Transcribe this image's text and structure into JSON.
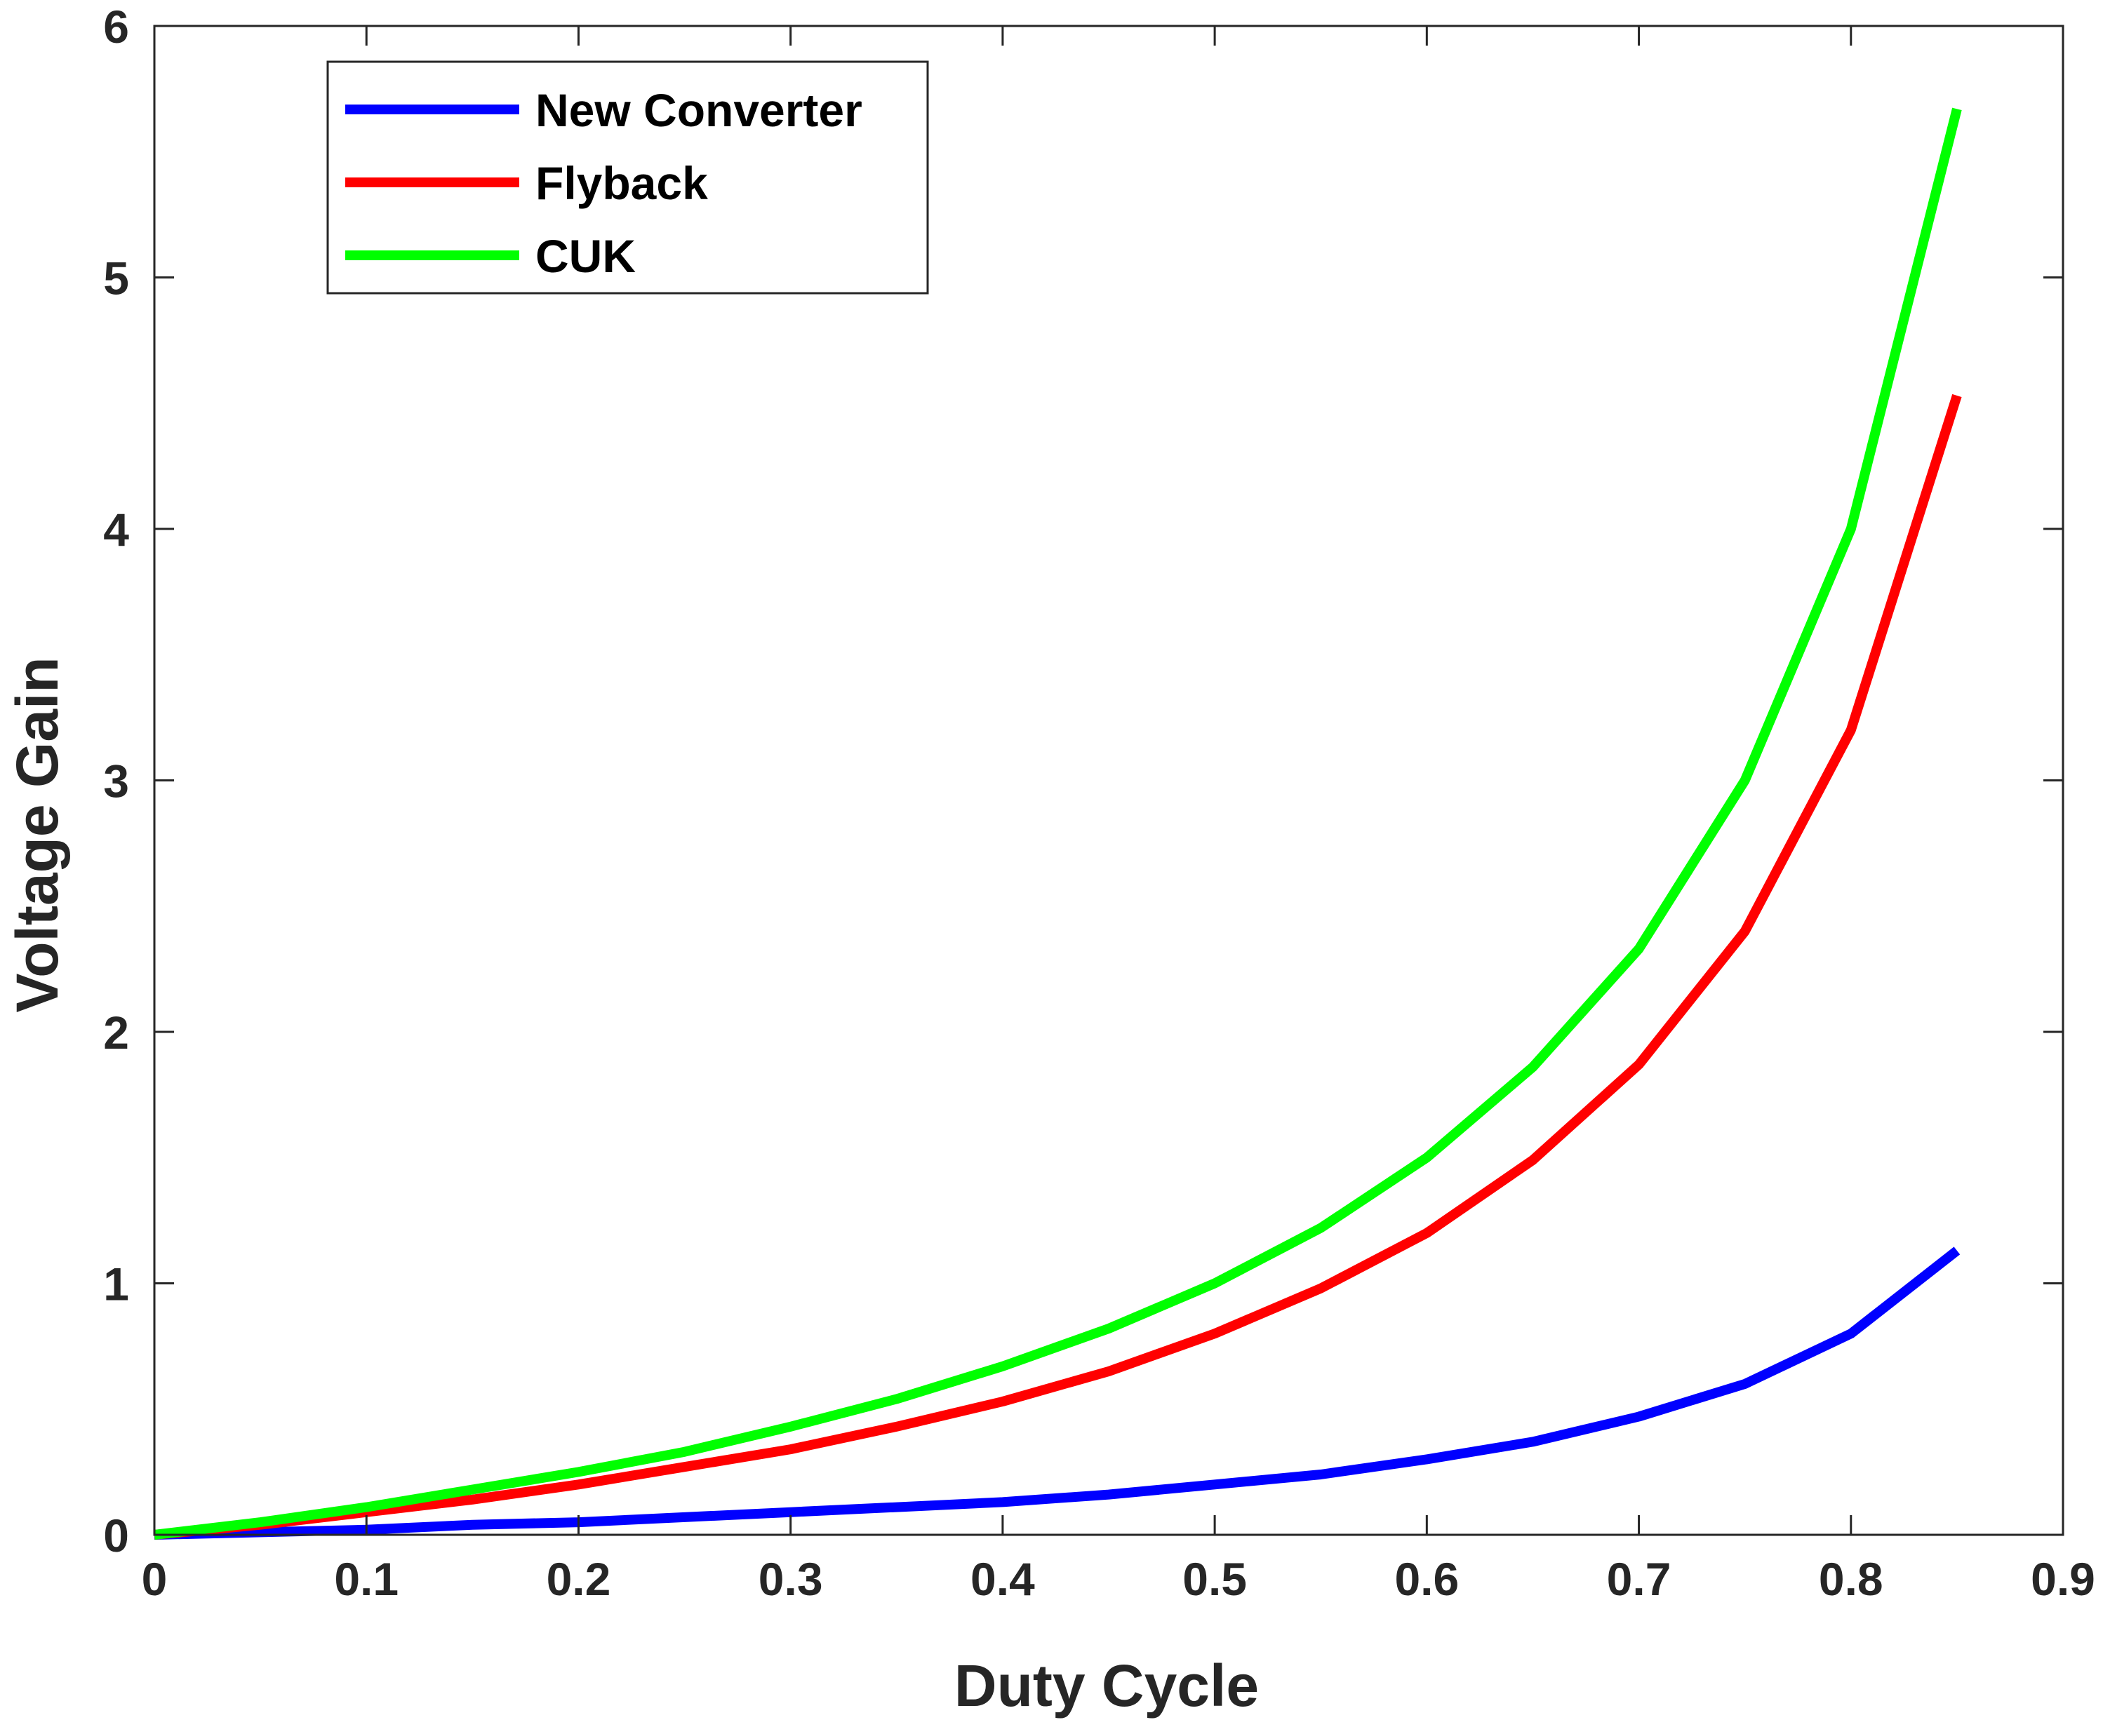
{
  "chart_data": {
    "type": "line",
    "title": "",
    "xlabel": "Duty Cycle",
    "ylabel": "Voltage Gain",
    "xlim": [
      0,
      0.9
    ],
    "ylim": [
      0,
      6
    ],
    "xticks": [
      0,
      0.1,
      0.2,
      0.3,
      0.4,
      0.5,
      0.6,
      0.7,
      0.8,
      0.9
    ],
    "xtick_labels": [
      "0",
      "0.1",
      "0.2",
      "0.3",
      "0.4",
      "0.5",
      "0.6",
      "0.7",
      "0.8",
      "0.9"
    ],
    "yticks": [
      0,
      1,
      2,
      3,
      4,
      5,
      6
    ],
    "ytick_labels": [
      "0",
      "1",
      "2",
      "3",
      "4",
      "5",
      "6"
    ],
    "grid": false,
    "legend_position": "top-left",
    "x": [
      0,
      0.05,
      0.1,
      0.15,
      0.2,
      0.25,
      0.3,
      0.35,
      0.4,
      0.45,
      0.5,
      0.55,
      0.6,
      0.65,
      0.7,
      0.75,
      0.8,
      0.85
    ],
    "series": [
      {
        "name": "New Converter",
        "color": "#0000ff",
        "values": [
          0,
          0.01,
          0.02,
          0.04,
          0.05,
          0.07,
          0.09,
          0.11,
          0.13,
          0.16,
          0.2,
          0.24,
          0.3,
          0.37,
          0.47,
          0.6,
          0.8,
          1.13
        ]
      },
      {
        "name": "Flyback",
        "color": "#ff0000",
        "values": [
          0,
          0.04,
          0.09,
          0.14,
          0.2,
          0.27,
          0.34,
          0.43,
          0.53,
          0.65,
          0.8,
          0.98,
          1.2,
          1.49,
          1.87,
          2.4,
          3.2,
          4.53
        ]
      },
      {
        "name": "CUK",
        "color": "#00ff00",
        "values": [
          0,
          0.05,
          0.11,
          0.18,
          0.25,
          0.33,
          0.43,
          0.54,
          0.67,
          0.82,
          1.0,
          1.22,
          1.5,
          1.86,
          2.33,
          3.0,
          4.0,
          5.67
        ]
      }
    ]
  }
}
